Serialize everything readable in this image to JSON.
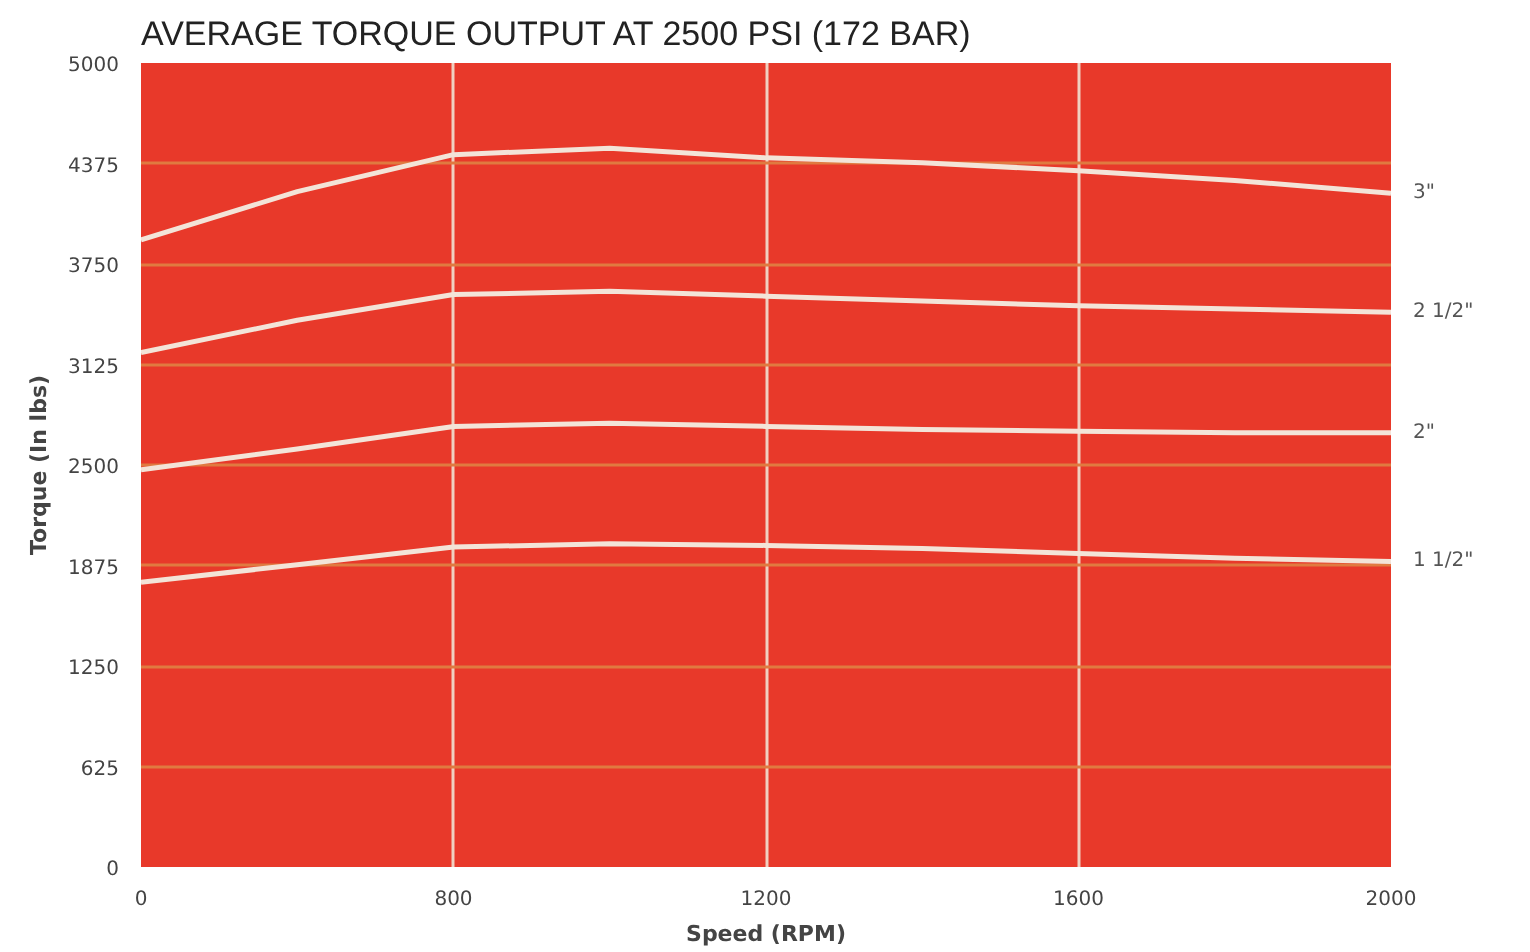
{
  "chart_data": {
    "type": "line",
    "title": "AVERAGE TORQUE OUTPUT AT 2500 PSI (172 BAR)",
    "xlabel": "Speed (RPM)",
    "ylabel": "Torque (In lbs)",
    "categories": [
      "0",
      null,
      "800",
      null,
      "1200",
      null,
      "1600",
      null,
      "2000"
    ],
    "ylim": [
      0,
      5000
    ],
    "yticks": [
      0,
      625,
      1250,
      1875,
      2500,
      3125,
      3750,
      4375,
      5000
    ],
    "grid": true,
    "marker": "none",
    "line_style": "solid",
    "series": [
      {
        "name": "3\"",
        "color": "#f3e4d8",
        "values": [
          3900,
          4200,
          4430,
          4470,
          4410,
          4380,
          4330,
          4270,
          4190
        ]
      },
      {
        "name": "2 1/2\"",
        "color": "#f3e4d8",
        "values": [
          3200,
          3400,
          3560,
          3580,
          3550,
          3520,
          3490,
          3470,
          3450
        ]
      },
      {
        "name": "2\"",
        "color": "#f3e4d8",
        "values": [
          2470,
          2600,
          2740,
          2760,
          2740,
          2720,
          2710,
          2700,
          2700
        ]
      },
      {
        "name": "1 1/2\"",
        "color": "#f3e4d8",
        "values": [
          1770,
          1880,
          1990,
          2010,
          2000,
          1980,
          1950,
          1920,
          1900
        ]
      }
    ]
  }
}
